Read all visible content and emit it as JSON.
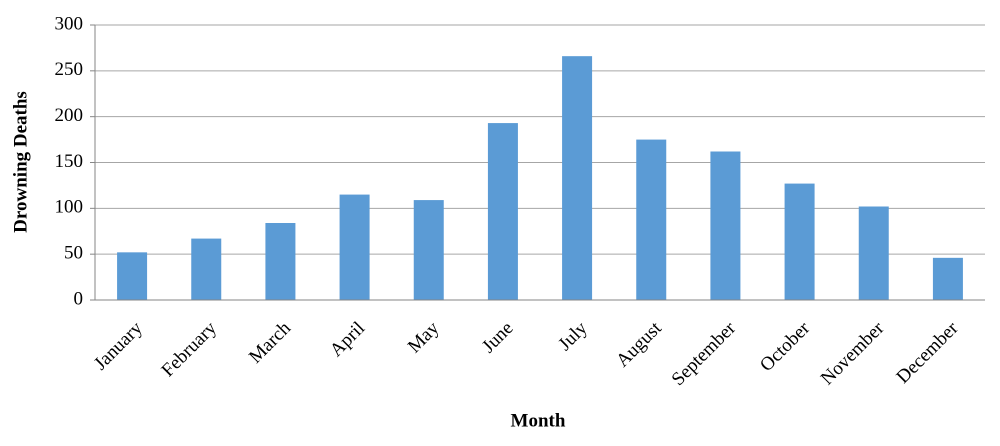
{
  "chart_data": {
    "type": "bar",
    "x_label": "Month",
    "y_label": "Drowning Deaths",
    "categories": [
      "January",
      "February",
      "March",
      "April",
      "May",
      "June",
      "July",
      "August",
      "September",
      "October",
      "November",
      "December"
    ],
    "values": [
      52,
      67,
      84,
      115,
      109,
      193,
      266,
      175,
      162,
      127,
      102,
      46
    ],
    "color": "#5b9bd5",
    "ylim": [
      0,
      300
    ],
    "yticks": [
      0,
      50,
      100,
      150,
      200,
      250,
      300
    ],
    "grid": true
  }
}
